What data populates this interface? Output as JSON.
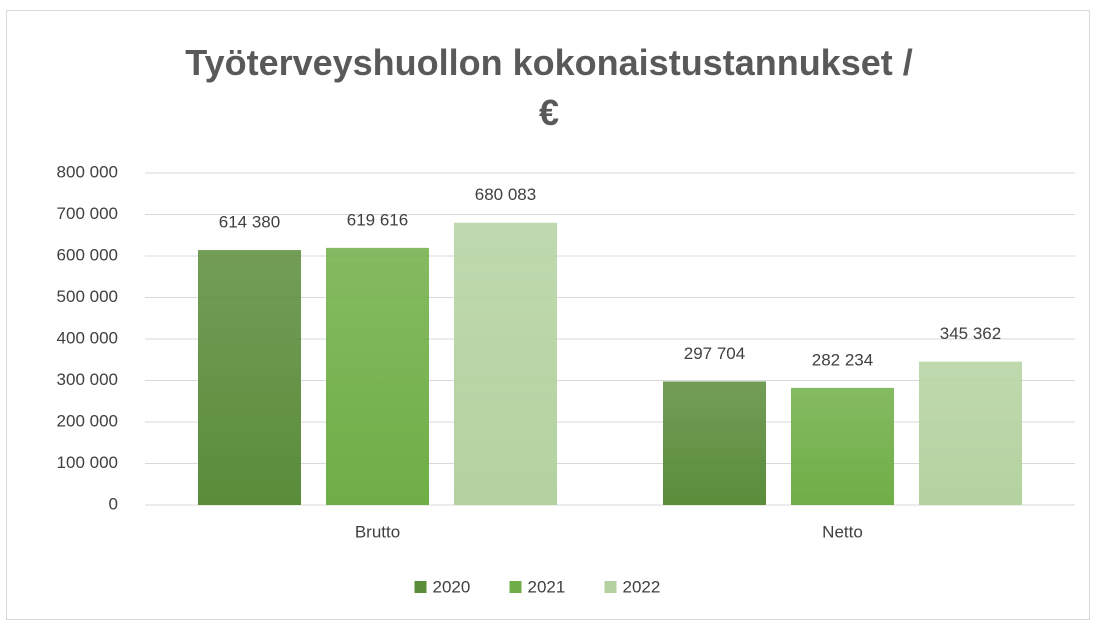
{
  "chart_data": {
    "type": "bar",
    "title": "Työterveyshuollon kokonaistustannukset / €",
    "categories": [
      "Brutto",
      "Netto"
    ],
    "series": [
      {
        "name": "2020",
        "color": "#5a8c3a",
        "values": [
          614380,
          297704
        ],
        "value_labels": [
          "614 380",
          "297 704"
        ]
      },
      {
        "name": "2021",
        "color": "#6fae46",
        "values": [
          619616,
          282234
        ],
        "value_labels": [
          "619 616",
          "282 234"
        ]
      },
      {
        "name": "2022",
        "color": "#b4d2a0",
        "values": [
          680083,
          345362
        ],
        "value_labels": [
          "680 083",
          "345 362"
        ]
      }
    ],
    "ylim": [
      0,
      800000
    ],
    "yticks": [
      0,
      {
        "value": 100000,
        "label": "100 000"
      },
      {
        "value": 200000,
        "label": "200 000"
      },
      {
        "value": 300000,
        "label": "300 000"
      },
      {
        "value": 400000,
        "label": "400 000"
      },
      {
        "value": 500000,
        "label": "500 000"
      },
      {
        "value": 600000,
        "label": "600 000"
      },
      {
        "value": 700000,
        "label": "700 000"
      },
      {
        "value": 800000,
        "label": "800 000"
      }
    ],
    "grid": true,
    "legend": "bottom"
  }
}
